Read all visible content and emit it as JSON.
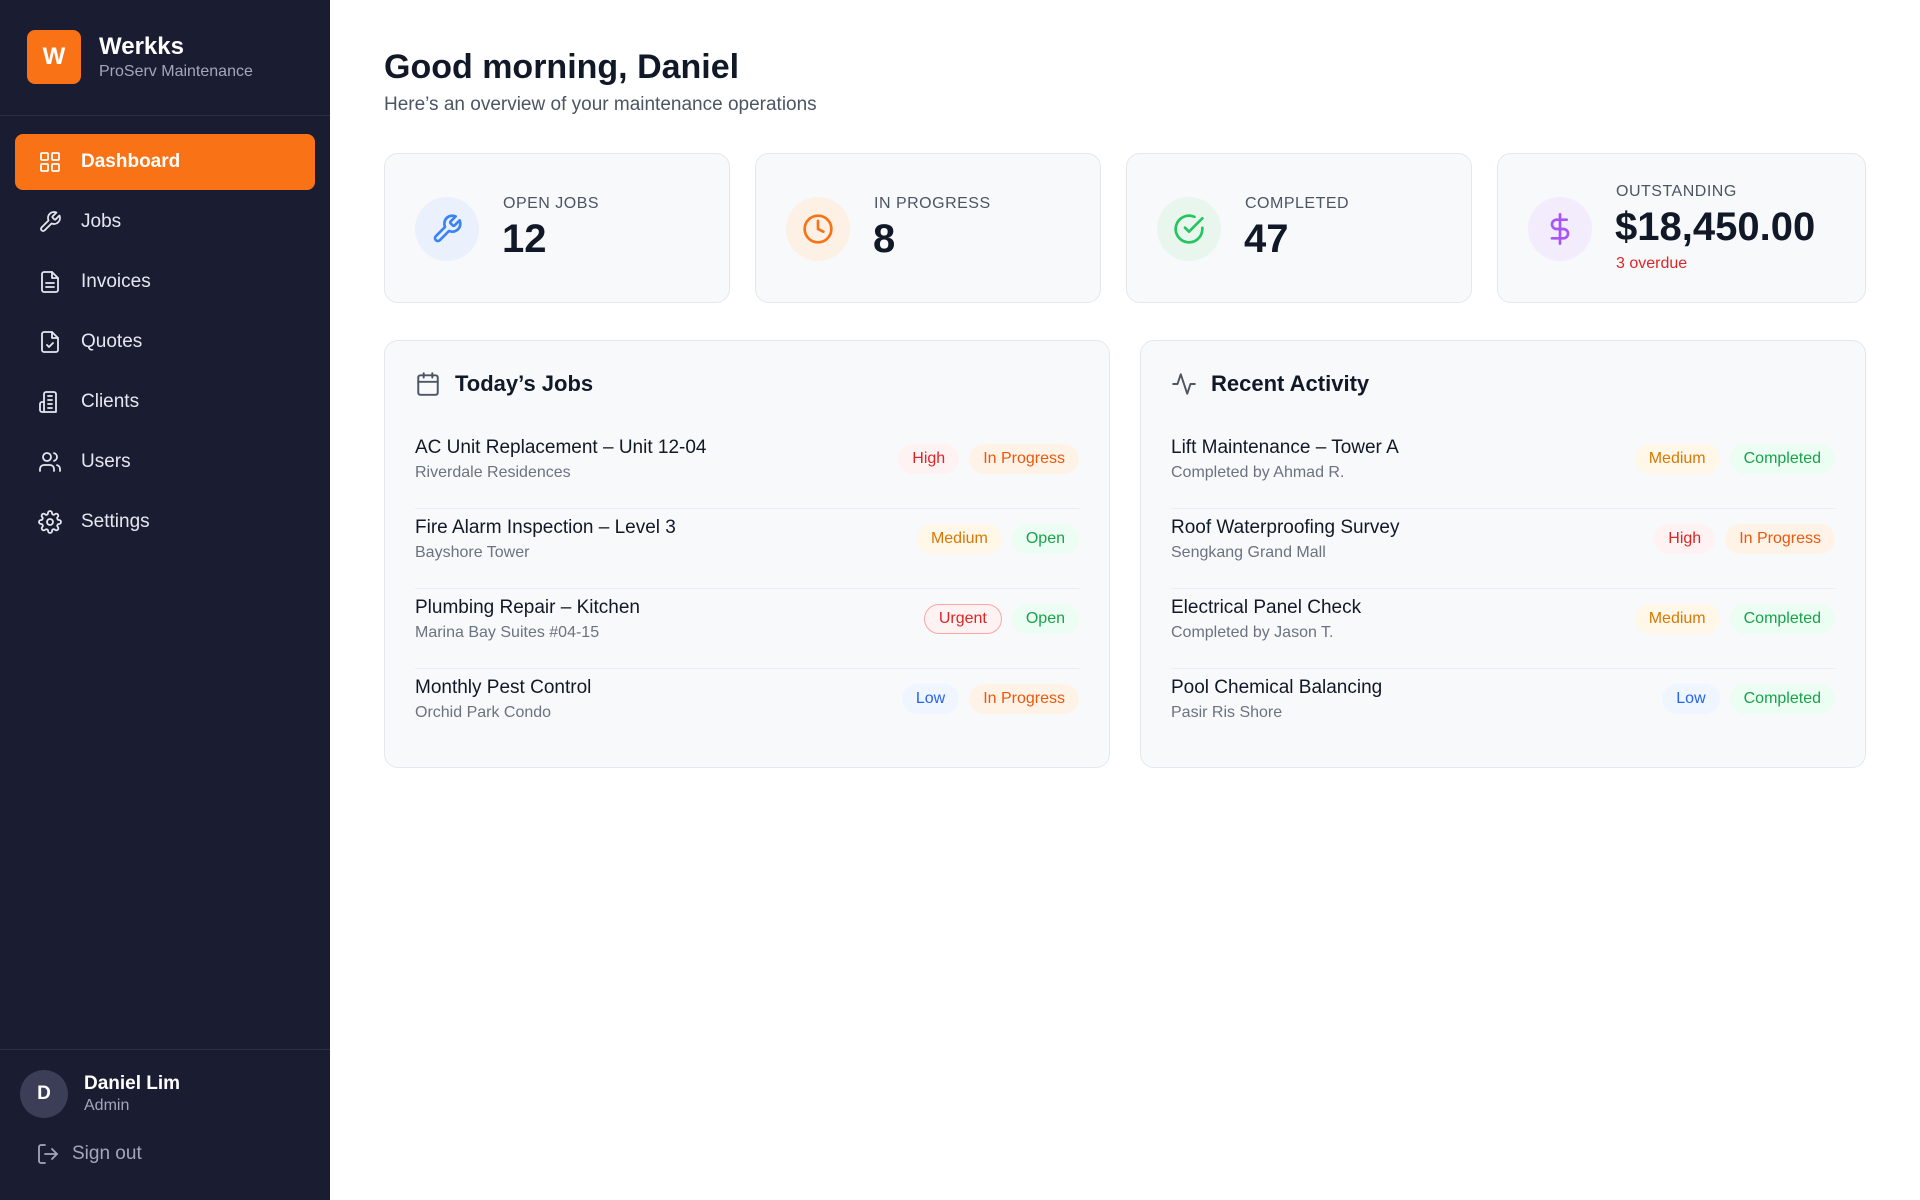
{
  "brand": {
    "logo_letter": "W",
    "name": "Werkks",
    "subtitle": "ProServ Maintenance"
  },
  "nav": [
    {
      "label": "Dashboard",
      "icon": "grid-icon",
      "active": true
    },
    {
      "label": "Jobs",
      "icon": "wrench-icon"
    },
    {
      "label": "Invoices",
      "icon": "document-icon"
    },
    {
      "label": "Quotes",
      "icon": "document-check-icon"
    },
    {
      "label": "Clients",
      "icon": "building-icon"
    },
    {
      "label": "Users",
      "icon": "users-icon"
    },
    {
      "label": "Settings",
      "icon": "gear-icon"
    }
  ],
  "user": {
    "initial": "D",
    "name": "Daniel Lim",
    "role": "Admin",
    "signout_label": "Sign out"
  },
  "header": {
    "greeting": "Good morning, Daniel",
    "subtitle": "Here’s an overview of your maintenance operations"
  },
  "stats": [
    {
      "label": "OPEN JOBS",
      "value": "12",
      "icon": "wrench-icon",
      "color": "#3b82f6",
      "bg": "#eaf1fd"
    },
    {
      "label": "IN PROGRESS",
      "value": "8",
      "icon": "clock-icon",
      "color": "#f97316",
      "bg": "#fdf0e4"
    },
    {
      "label": "COMPLETED",
      "value": "47",
      "icon": "check-circle-icon",
      "color": "#22c55e",
      "bg": "#e8f6ee"
    },
    {
      "label": "OUTSTANDING",
      "value": "$18,450.00",
      "note": "3 overdue",
      "icon": "dollar-icon",
      "color": "#a855f7",
      "bg": "#f3ecfc"
    }
  ],
  "todays_jobs": {
    "title": "Today’s Jobs",
    "items": [
      {
        "title": "AC Unit Replacement – Unit 12-04",
        "sub": "Riverdale Residences",
        "priority": "High",
        "status": "In Progress"
      },
      {
        "title": "Fire Alarm Inspection – Level 3",
        "sub": "Bayshore Tower",
        "priority": "Medium",
        "status": "Open"
      },
      {
        "title": "Plumbing Repair – Kitchen",
        "sub": "Marina Bay Suites #04-15",
        "priority": "Urgent",
        "status": "Open"
      },
      {
        "title": "Monthly Pest Control",
        "sub": "Orchid Park Condo",
        "priority": "Low",
        "status": "In Progress"
      }
    ]
  },
  "recent_activity": {
    "title": "Recent Activity",
    "items": [
      {
        "title": "Lift Maintenance – Tower A",
        "sub": "Completed by Ahmad R.",
        "priority": "Medium",
        "status": "Completed"
      },
      {
        "title": "Roof Waterproofing Survey",
        "sub": "Sengkang Grand Mall",
        "priority": "High",
        "status": "In Progress"
      },
      {
        "title": "Electrical Panel Check",
        "sub": "Completed by Jason T.",
        "priority": "Medium",
        "status": "Completed"
      },
      {
        "title": "Pool Chemical Balancing",
        "sub": "Pasir Ris Shore",
        "priority": "Low",
        "status": "Completed"
      }
    ]
  }
}
